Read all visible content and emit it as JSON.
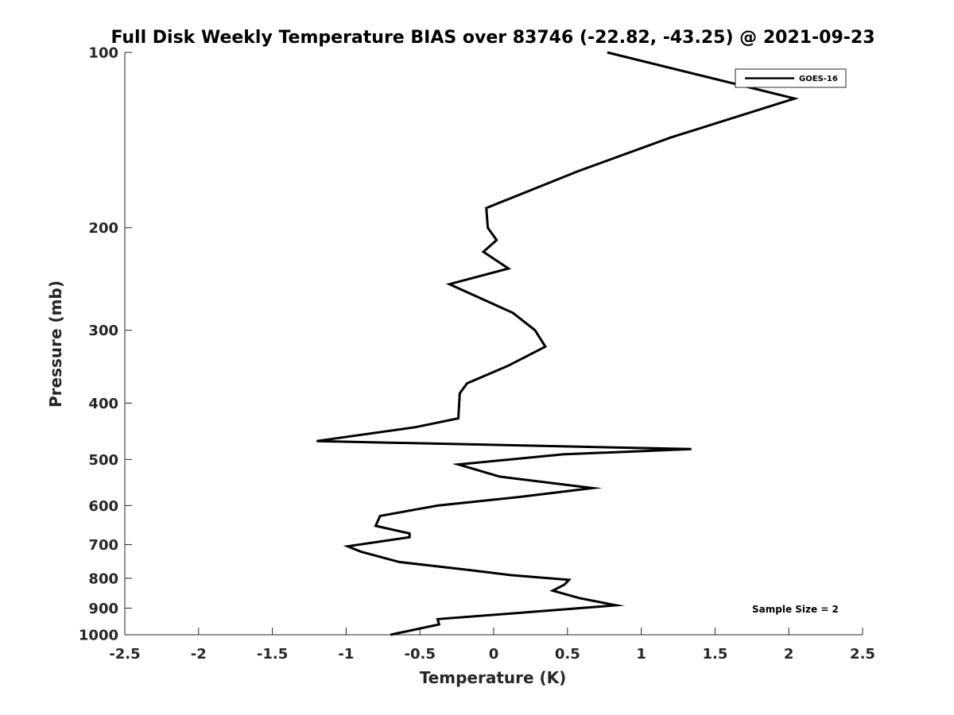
{
  "chart_data": {
    "type": "line",
    "title": "Full Disk Weekly Temperature BIAS over 83746 (-22.82, -43.25) @ 2021-09-23",
    "xlabel": "Temperature (K)",
    "ylabel": "Pressure (mb)",
    "xlim": [
      -2.5,
      2.5
    ],
    "ylim": [
      100,
      1000
    ],
    "y_scale": "log",
    "y_reversed": true,
    "grid": false,
    "legend_position": "top-right",
    "annotation": "Sample Size = 2",
    "x_ticks": [
      -2.5,
      -2,
      -1.5,
      -1,
      -0.5,
      0,
      0.5,
      1,
      1.5,
      2,
      2.5
    ],
    "x_tick_labels": [
      "-2.5",
      "-2",
      "-1.5",
      "-1",
      "-0.5",
      "0",
      "0.5",
      "1",
      "1.5",
      "2",
      "2.5"
    ],
    "y_ticks": [
      100,
      200,
      300,
      400,
      500,
      600,
      700,
      800,
      900,
      1000
    ],
    "y_tick_labels": [
      "100",
      "200",
      "300",
      "400",
      "500",
      "600",
      "700",
      "800",
      "900",
      "1000"
    ],
    "series": [
      {
        "name": "GOES-16",
        "color": "#000000",
        "points": [
          [
            0.77,
            100
          ],
          [
            2.04,
            120
          ],
          [
            1.2,
            140
          ],
          [
            0.57,
            160
          ],
          [
            -0.05,
            185
          ],
          [
            -0.04,
            200
          ],
          [
            0.02,
            210
          ],
          [
            -0.07,
            220
          ],
          [
            0.1,
            235
          ],
          [
            -0.3,
            250
          ],
          [
            0.13,
            280
          ],
          [
            0.28,
            300
          ],
          [
            0.35,
            320
          ],
          [
            0.1,
            345
          ],
          [
            -0.18,
            370
          ],
          [
            -0.23,
            385
          ],
          [
            -0.24,
            425
          ],
          [
            -0.53,
            440
          ],
          [
            -1.2,
            465
          ],
          [
            1.34,
            480
          ],
          [
            0.47,
            490
          ],
          [
            -0.24,
            510
          ],
          [
            0.04,
            535
          ],
          [
            0.67,
            560
          ],
          [
            0.17,
            580
          ],
          [
            -0.38,
            600
          ],
          [
            -0.77,
            625
          ],
          [
            -0.8,
            650
          ],
          [
            -0.57,
            670
          ],
          [
            -0.57,
            680
          ],
          [
            -0.99,
            705
          ],
          [
            -0.9,
            720
          ],
          [
            -0.64,
            750
          ],
          [
            -0.15,
            775
          ],
          [
            0.12,
            790
          ],
          [
            0.51,
            805
          ],
          [
            0.48,
            820
          ],
          [
            0.4,
            840
          ],
          [
            0.58,
            865
          ],
          [
            0.83,
            890
          ],
          [
            0.1,
            920
          ],
          [
            -0.38,
            940
          ],
          [
            -0.37,
            960
          ],
          [
            -0.7,
            1000
          ]
        ]
      }
    ]
  }
}
